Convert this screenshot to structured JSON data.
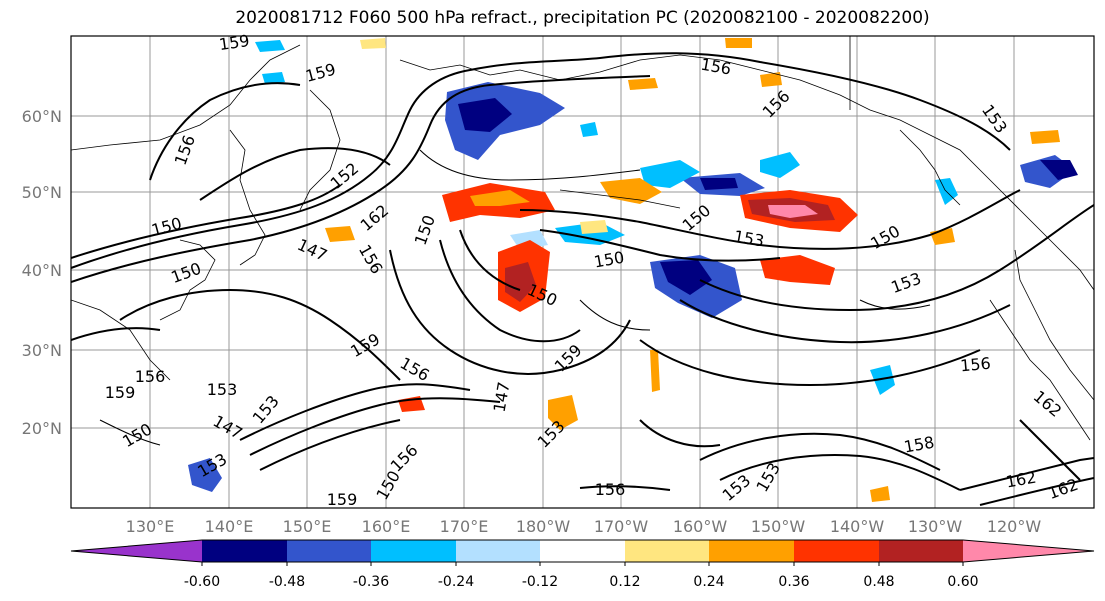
{
  "title": "2020081712 F060 500 hPa refract., precipitation PC (2020082100 - 2020082200)",
  "map": {
    "lat_labels": [
      "60°N",
      "50°N",
      "40°N",
      "30°N",
      "20°N"
    ],
    "lon_labels": [
      "130°E",
      "140°E",
      "150°E",
      "160°E",
      "170°E",
      "180°W",
      "170°W",
      "160°W",
      "150°W",
      "140°W",
      "130°W",
      "120°W"
    ],
    "contour_labels": [
      "159",
      "159",
      "156",
      "156",
      "156",
      "153",
      "152",
      "150",
      "162",
      "150",
      "147",
      "156",
      "150",
      "153",
      "150",
      "150",
      "150",
      "153",
      "150",
      "159",
      "156",
      "159",
      "147",
      "153",
      "156",
      "156",
      "159",
      "153",
      "147",
      "150",
      "153",
      "153",
      "156",
      "150",
      "159",
      "156",
      "153",
      "153",
      "158",
      "162",
      "162",
      "162"
    ]
  },
  "colorbar": {
    "tick_labels": [
      "-0.60",
      "-0.48",
      "-0.36",
      "-0.24",
      "-0.12",
      "0.12",
      "0.24",
      "0.36",
      "0.48",
      "0.60"
    ],
    "colors": [
      "#9933cc",
      "#000080",
      "#3355cc",
      "#00bfff",
      "#b3e0ff",
      "#ffffff",
      "#ffe680",
      "#ffa000",
      "#ff3300",
      "#b22222",
      "#ff88aa"
    ]
  }
}
